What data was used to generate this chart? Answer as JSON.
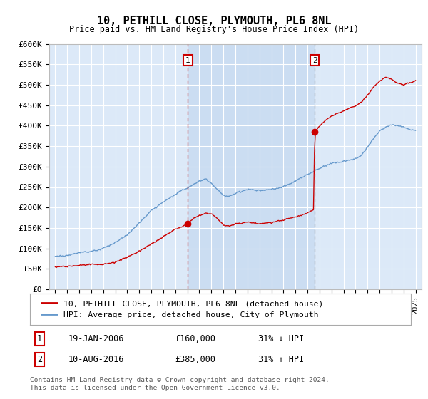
{
  "title": "10, PETHILL CLOSE, PLYMOUTH, PL6 8NL",
  "subtitle": "Price paid vs. HM Land Registry's House Price Index (HPI)",
  "ylim": [
    0,
    600000
  ],
  "yticks": [
    0,
    50000,
    100000,
    150000,
    200000,
    250000,
    300000,
    350000,
    400000,
    450000,
    500000,
    550000,
    600000
  ],
  "ytick_labels": [
    "£0",
    "£50K",
    "£100K",
    "£150K",
    "£200K",
    "£250K",
    "£300K",
    "£350K",
    "£400K",
    "£450K",
    "£500K",
    "£550K",
    "£600K"
  ],
  "sale1_date": 2006.05,
  "sale1_price": 160000,
  "sale1_label": "1",
  "sale2_date": 2016.61,
  "sale2_price": 385000,
  "sale2_label": "2",
  "legend_line1": "10, PETHILL CLOSE, PLYMOUTH, PL6 8NL (detached house)",
  "legend_line2": "HPI: Average price, detached house, City of Plymouth",
  "table_row1": [
    "1",
    "19-JAN-2006",
    "£160,000",
    "31% ↓ HPI"
  ],
  "table_row2": [
    "2",
    "10-AUG-2016",
    "£385,000",
    "31% ↑ HPI"
  ],
  "footer": "Contains HM Land Registry data © Crown copyright and database right 2024.\nThis data is licensed under the Open Government Licence v3.0.",
  "background_color": "#dce9f8",
  "red_line_color": "#cc0000",
  "blue_line_color": "#6699cc",
  "shade_color": "#c5d8f0",
  "dashed_red_color": "#cc0000",
  "dashed_gray_color": "#999999"
}
